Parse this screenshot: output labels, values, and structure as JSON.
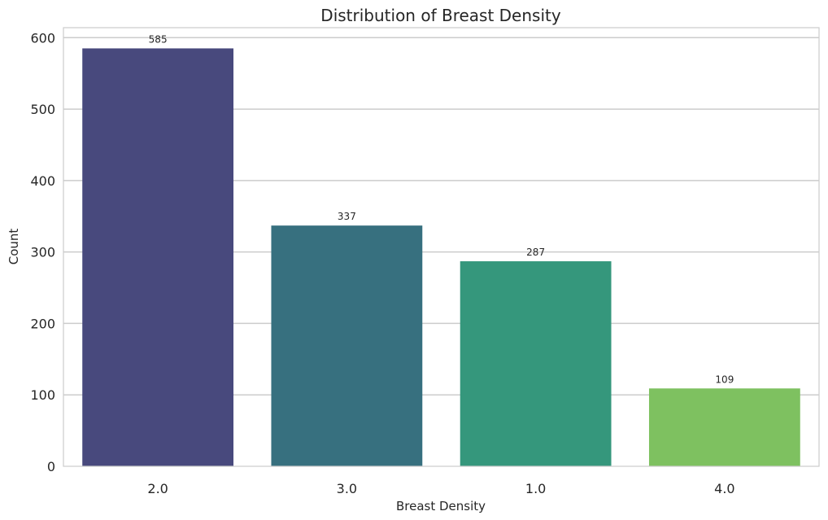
{
  "chart_data": {
    "type": "bar",
    "title": "Distribution of Breast Density",
    "xlabel": "Breast Density",
    "ylabel": "Count",
    "categories": [
      "2.0",
      "3.0",
      "1.0",
      "4.0"
    ],
    "values": [
      585,
      337,
      287,
      109
    ],
    "data_labels": [
      "585",
      "337",
      "287",
      "109"
    ],
    "ylim": [
      0,
      614
    ],
    "yticks": [
      0,
      100,
      200,
      300,
      400,
      500,
      600
    ],
    "grid": true,
    "bar_colors": [
      "#48497d",
      "#37707f",
      "#35977c",
      "#7ec160"
    ]
  }
}
